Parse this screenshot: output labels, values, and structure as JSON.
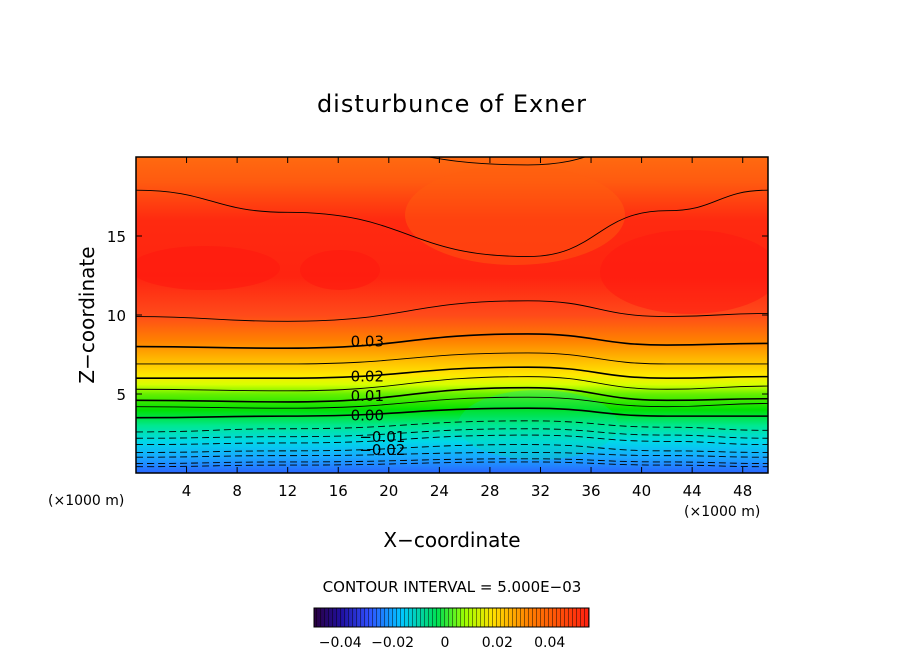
{
  "chart_data": {
    "type": "contour",
    "title": "disturbunce of Exner",
    "xlabel": "X−coordinate",
    "ylabel": "Z−coordinate",
    "x_unit": "(×1000 m)",
    "y_unit": "(×1000 m)",
    "xlim": [
      0,
      50
    ],
    "ylim": [
      0,
      20
    ],
    "x_ticks": [
      4,
      8,
      12,
      16,
      20,
      24,
      28,
      32,
      36,
      40,
      44,
      48
    ],
    "y_ticks": [
      5,
      10,
      15
    ],
    "contour_interval_text": "CONTOUR INTERVAL = 5.000E−03",
    "contour_interval": 0.005,
    "contour_labels": [
      {
        "text": "0.03",
        "value": 0.03
      },
      {
        "text": "0.02",
        "value": 0.02
      },
      {
        "text": "0.01",
        "value": 0.01
      },
      {
        "text": "0.00",
        "value": 0.0
      },
      {
        "text": "−0.01",
        "value": -0.01
      },
      {
        "text": "−0.02",
        "value": -0.02
      }
    ],
    "colorbar": {
      "min": -0.05,
      "max": 0.055,
      "tick_values": [
        -0.04,
        -0.02,
        0,
        0.02,
        0.04
      ],
      "tick_labels": [
        "−0.04",
        "−0.02",
        "0",
        "0.02",
        "0.04"
      ]
    },
    "contour_levels": [
      {
        "value": -0.035,
        "style": "dashed",
        "z": [
          0.4,
          0.5,
          0.7,
          0.5,
          0.4
        ]
      },
      {
        "value": -0.03,
        "style": "dashed",
        "z": [
          0.6,
          0.7,
          0.9,
          0.7,
          0.6
        ]
      },
      {
        "value": -0.025,
        "style": "dashed",
        "z": [
          1.0,
          1.1,
          1.3,
          1.1,
          1.0
        ]
      },
      {
        "value": -0.02,
        "style": "dashed",
        "z": [
          1.3,
          1.4,
          1.8,
          1.4,
          1.3
        ]
      },
      {
        "value": -0.015,
        "style": "dashed",
        "z": [
          1.8,
          1.9,
          2.4,
          2.0,
          1.8
        ]
      },
      {
        "value": -0.01,
        "style": "dashed",
        "z": [
          2.2,
          2.3,
          2.8,
          2.4,
          2.2
        ]
      },
      {
        "value": -0.005,
        "style": "dashed",
        "z": [
          2.6,
          2.8,
          3.3,
          2.9,
          2.7
        ]
      },
      {
        "value": 0.0,
        "style": "solid-bold",
        "z": [
          3.5,
          3.6,
          4.1,
          3.6,
          3.6
        ]
      },
      {
        "value": 0.005,
        "style": "solid",
        "z": [
          4.2,
          4.1,
          4.8,
          4.2,
          4.4
        ]
      },
      {
        "value": 0.01,
        "style": "solid-bold",
        "z": [
          4.6,
          4.5,
          5.4,
          4.6,
          4.7
        ]
      },
      {
        "value": 0.015,
        "style": "solid",
        "z": [
          5.3,
          5.2,
          6.1,
          5.3,
          5.5
        ]
      },
      {
        "value": 0.02,
        "style": "solid-bold",
        "z": [
          6.0,
          6.0,
          6.7,
          6.0,
          6.1
        ]
      },
      {
        "value": 0.025,
        "style": "solid",
        "z": [
          6.9,
          6.9,
          7.6,
          6.9,
          6.9
        ]
      },
      {
        "value": 0.03,
        "style": "solid-bold",
        "z": [
          8.0,
          7.9,
          8.8,
          8.1,
          8.2
        ]
      },
      {
        "value": 0.035,
        "style": "solid",
        "z": [
          9.9,
          9.6,
          10.9,
          9.9,
          10.1
        ]
      },
      {
        "value": 0.04,
        "style": "solid",
        "z": [
          17.9,
          16.5,
          13.7,
          16.6,
          17.9
        ]
      },
      {
        "value": 0.045,
        "style": "solid",
        "z": [
          21.0,
          21.0,
          19.5,
          21.0,
          21.0
        ]
      }
    ],
    "contour_level_x": [
      0,
      12,
      31,
      42,
      50
    ]
  }
}
